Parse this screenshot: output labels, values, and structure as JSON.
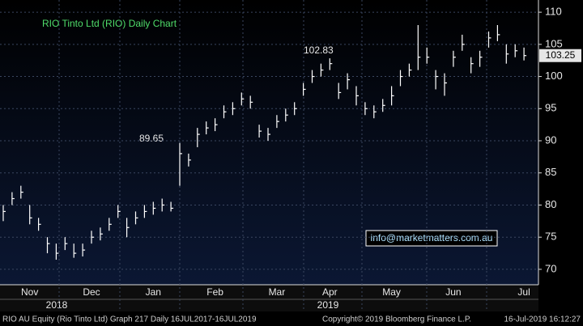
{
  "chart_data": {
    "type": "ohlc",
    "title": "RIO Tinto Ltd (RIO) Daily Chart",
    "categories": [
      null,
      null,
      null,
      "Nov",
      null,
      null,
      null,
      null,
      null,
      null,
      "Dec",
      null,
      null,
      null,
      null,
      null,
      null,
      "Jan",
      null,
      null,
      null,
      null,
      null,
      null,
      "Feb",
      null,
      null,
      null,
      null,
      null,
      null,
      "Mar",
      null,
      null,
      null,
      null,
      null,
      "Apr",
      null,
      null,
      null,
      null,
      null,
      null,
      "May",
      null,
      null,
      null,
      null,
      null,
      null,
      "Jun",
      null,
      null,
      null,
      null,
      null,
      null,
      null,
      "Jul"
    ],
    "high": [
      80,
      82,
      83,
      80,
      78,
      75,
      74,
      75,
      74,
      74,
      76,
      76.5,
      78,
      80,
      78,
      79,
      80,
      80.5,
      81,
      80.5,
      89.65,
      88,
      92,
      93,
      93.5,
      95.5,
      96,
      97.5,
      97,
      92.5,
      92,
      94,
      95,
      96,
      99,
      101,
      102,
      102.83,
      99,
      100.5,
      98.5,
      96,
      95.5,
      96.5,
      98.5,
      101,
      102,
      108,
      104.5,
      101,
      100.5,
      104,
      106.5,
      103,
      104,
      107,
      108,
      105,
      105,
      104.5
    ],
    "low": [
      77.5,
      80,
      81,
      77,
      76,
      72.5,
      71.5,
      73,
      71.8,
      72,
      74,
      74.5,
      76,
      78,
      75,
      77,
      78,
      78.5,
      79,
      79,
      83,
      86,
      89,
      91,
      91.5,
      93.5,
      94,
      95.5,
      95,
      90.5,
      90,
      92,
      93,
      94,
      97,
      99,
      100,
      101,
      96.5,
      98,
      95.5,
      94,
      93.5,
      94.5,
      95.5,
      98.5,
      100,
      101,
      102,
      98,
      97,
      101.5,
      104,
      100.5,
      101.5,
      104.5,
      105.5,
      102,
      103,
      102.5
    ],
    "close": [
      79,
      81,
      82,
      78,
      77,
      74,
      72.5,
      74,
      72.5,
      73,
      75,
      75.5,
      77,
      79,
      76.5,
      78,
      79,
      79.5,
      80,
      79.5,
      88,
      87,
      91,
      92,
      92.5,
      94.5,
      95,
      96.5,
      96,
      91.5,
      91,
      93,
      94,
      95,
      98,
      100,
      101,
      102,
      97.5,
      99.5,
      97,
      95,
      94.5,
      95.5,
      97,
      100,
      101,
      103,
      103,
      100,
      99,
      103,
      105,
      102,
      103,
      106,
      106.5,
      103.5,
      104,
      103.25
    ],
    "color": "#ffffff",
    "ylim": [
      67.6,
      111.9
    ],
    "yticks": [
      70,
      75,
      80,
      85,
      90,
      95,
      100,
      105,
      110
    ],
    "grid": true,
    "annotations": [
      "89.65",
      "102.83"
    ],
    "years": [
      "2018",
      "2019"
    ],
    "website": "info@marketmatters.com.au",
    "footer": {
      "left": "RIO AU Equity (Rio Tinto Ltd) Graph 217  Daily 16JUL2017-16JUL2019",
      "center": "Copyright© 2019 Bloomberg Finance L.P.",
      "right": "16-Jul-2019 16:12:27"
    }
  }
}
